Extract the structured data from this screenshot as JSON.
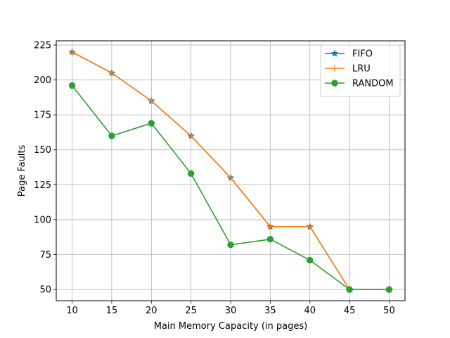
{
  "chart_data": {
    "type": "line",
    "title": "",
    "xlabel": "Main Memory Capacity (in pages)",
    "ylabel": "Page Faults",
    "x": [
      10,
      15,
      20,
      25,
      30,
      35,
      40,
      45,
      50
    ],
    "xlim": [
      8,
      52
    ],
    "ylim": [
      42,
      228
    ],
    "xticks": [
      10,
      15,
      20,
      25,
      30,
      35,
      40,
      45,
      50
    ],
    "yticks": [
      50,
      75,
      100,
      125,
      150,
      175,
      200,
      225
    ],
    "grid": true,
    "legend_position": "top-right",
    "series": [
      {
        "name": "FIFO",
        "color": "#1f77b4",
        "marker": "star",
        "values": [
          220,
          205,
          185,
          160,
          130,
          95,
          95,
          50,
          50
        ]
      },
      {
        "name": "LRU",
        "color": "#ff7f0e",
        "marker": "plus",
        "values": [
          220,
          205,
          185,
          160,
          130,
          95,
          95,
          50,
          50
        ]
      },
      {
        "name": "RANDOM",
        "color": "#2ca02c",
        "marker": "circle",
        "values": [
          196,
          160,
          169,
          133,
          82,
          86,
          71,
          50,
          50
        ]
      }
    ]
  }
}
